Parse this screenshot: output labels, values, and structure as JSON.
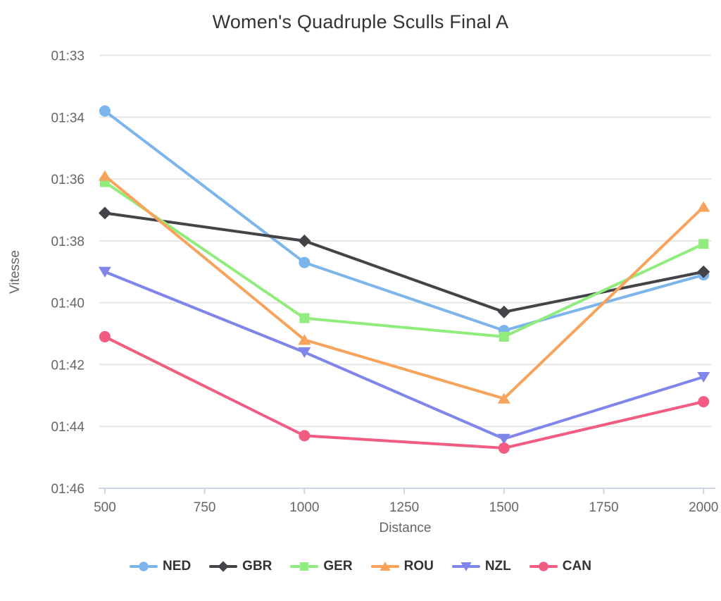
{
  "chart_data": {
    "type": "line",
    "title": "Women's Quadruple Sculls Final A",
    "xlabel": "Distance",
    "ylabel": "Vitesse",
    "x": [
      500,
      1000,
      1500,
      2000
    ],
    "x_ticks": [
      500,
      750,
      1000,
      1250,
      1500,
      1750,
      2000
    ],
    "xlim": [
      486,
      2019
    ],
    "y_axis": {
      "tick_labels": [
        "01:33",
        "01:34",
        "01:36",
        "01:38",
        "01:40",
        "01:42",
        "01:44",
        "01:46"
      ],
      "tick_values_seconds": [
        93,
        94,
        96,
        98,
        100,
        102,
        104,
        106
      ],
      "increases_downward": true
    },
    "grid": "horizontal-only",
    "legend_position": "bottom",
    "series": [
      {
        "name": "NED",
        "color": "#7cb5ec",
        "marker": "circle",
        "values_display": [
          "01:33.9",
          "01:38.7",
          "01:40.9",
          "01:39.1"
        ],
        "values_seconds": [
          93.9,
          98.7,
          100.9,
          99.1
        ]
      },
      {
        "name": "GBR",
        "color": "#434348",
        "marker": "diamond",
        "values_display": [
          "01:37.1",
          "01:38.0",
          "01:40.3",
          "01:39.0"
        ],
        "values_seconds": [
          97.1,
          98.0,
          100.3,
          99.0
        ]
      },
      {
        "name": "GER",
        "color": "#90ed7d",
        "marker": "square",
        "values_display": [
          "01:36.1",
          "01:40.5",
          "01:41.1",
          "01:38.1"
        ],
        "values_seconds": [
          96.1,
          100.5,
          101.1,
          98.1
        ]
      },
      {
        "name": "ROU",
        "color": "#f7a35c",
        "marker": "triangle",
        "values_display": [
          "01:35.9",
          "01:41.2",
          "01:43.1",
          "01:36.9"
        ],
        "values_seconds": [
          95.9,
          101.2,
          103.1,
          96.9
        ]
      },
      {
        "name": "NZL",
        "color": "#8085e9",
        "marker": "triangle-down",
        "values_display": [
          "01:39.0",
          "01:41.6",
          "01:44.4",
          "01:42.4"
        ],
        "values_seconds": [
          99.0,
          101.6,
          104.4,
          102.4
        ]
      },
      {
        "name": "CAN",
        "color": "#f15c80",
        "marker": "circle",
        "values_display": [
          "01:41.1",
          "01:44.3",
          "01:44.7",
          "01:43.2"
        ],
        "values_seconds": [
          101.1,
          104.3,
          104.7,
          103.2
        ]
      }
    ]
  },
  "style": {
    "background": "#ffffff",
    "grid_color": "#e6e6e6",
    "axis_line_color": "#ccd6eb",
    "tick_label_color": "#666666",
    "axis_title_color": "#666666",
    "title_color": "#333333",
    "legend_text_color": "#333333"
  }
}
